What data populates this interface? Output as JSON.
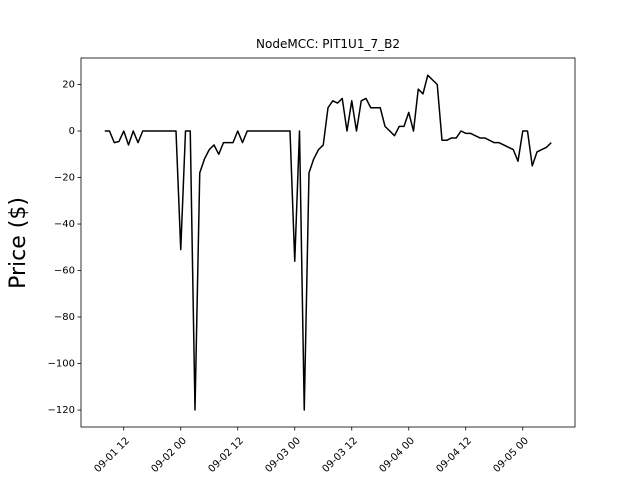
{
  "chart_data": {
    "type": "line",
    "title": "NodeMCC: PIT1U1_7_B2",
    "y_label": "Price ($)",
    "x": [
      "09-01 08",
      "09-01 09",
      "09-01 10",
      "09-01 11",
      "09-01 12",
      "09-01 13",
      "09-01 14",
      "09-01 15",
      "09-01 16",
      "09-01 17",
      "09-01 18",
      "09-01 19",
      "09-01 20",
      "09-01 21",
      "09-01 22",
      "09-01 23",
      "09-02 00",
      "09-02 01",
      "09-02 02",
      "09-02 03",
      "09-02 04",
      "09-02 05",
      "09-02 06",
      "09-02 07",
      "09-02 08",
      "09-02 09",
      "09-02 10",
      "09-02 11",
      "09-02 12",
      "09-02 13",
      "09-02 14",
      "09-02 15",
      "09-02 16",
      "09-02 17",
      "09-02 18",
      "09-02 19",
      "09-02 20",
      "09-02 21",
      "09-02 22",
      "09-02 23",
      "09-03 00",
      "09-03 01",
      "09-03 02",
      "09-03 03",
      "09-03 04",
      "09-03 05",
      "09-03 06",
      "09-03 07",
      "09-03 08",
      "09-03 09",
      "09-03 10",
      "09-03 11",
      "09-03 12",
      "09-03 13",
      "09-03 14",
      "09-03 15",
      "09-03 16",
      "09-03 17",
      "09-03 18",
      "09-03 19",
      "09-03 20",
      "09-03 21",
      "09-03 22",
      "09-03 23",
      "09-04 00",
      "09-04 01",
      "09-04 02",
      "09-04 03",
      "09-04 04",
      "09-04 05",
      "09-04 06",
      "09-04 07",
      "09-04 08",
      "09-04 09",
      "09-04 10",
      "09-04 11",
      "09-04 12",
      "09-04 13",
      "09-04 14",
      "09-04 15",
      "09-04 16",
      "09-04 17",
      "09-04 18",
      "09-04 19",
      "09-04 20",
      "09-04 21",
      "09-04 22",
      "09-04 23",
      "09-05 00",
      "09-05 01",
      "09-05 02",
      "09-05 03",
      "09-05 04",
      "09-05 05",
      "09-05 06"
    ],
    "series": [
      {
        "name": "Price",
        "color": "#000000",
        "values": [
          0,
          0,
          -5,
          -4.5,
          0,
          -6,
          0,
          -5,
          0,
          0,
          0,
          0,
          0,
          0,
          0,
          0,
          -51,
          0,
          0,
          -120,
          -18,
          -12,
          -8,
          -6,
          -10,
          -5,
          -5,
          -5,
          0,
          -5,
          0,
          0,
          0,
          0,
          0,
          0,
          0,
          0,
          0,
          0,
          -56,
          0,
          -120,
          -18,
          -12,
          -8,
          -6,
          10,
          13,
          12,
          14,
          0,
          13,
          0,
          13,
          14,
          10,
          10,
          10,
          2,
          0,
          -2,
          2,
          2,
          8,
          0,
          18,
          16,
          24,
          22,
          20,
          -4,
          -4,
          -3,
          -3,
          0,
          -1,
          -1,
          -2,
          -3,
          -3,
          -4,
          -5,
          -5,
          -6,
          -7,
          -8,
          -13,
          0,
          0,
          -15,
          -9,
          -8,
          -7,
          -5
        ]
      }
    ],
    "xlim": [
      "09-01 03",
      "09-05 11"
    ],
    "xticks": [
      "09-01 12",
      "09-02 00",
      "09-02 12",
      "09-03 00",
      "09-03 12",
      "09-04 00",
      "09-04 12",
      "09-05 00"
    ],
    "ylim": [
      -127.3,
      31.4
    ],
    "yticks": [
      {
        "value": -120,
        "label": "−120"
      },
      {
        "value": -100,
        "label": "−100"
      },
      {
        "value": -80,
        "label": "−80"
      },
      {
        "value": -60,
        "label": "−60"
      },
      {
        "value": -40,
        "label": "−40"
      },
      {
        "value": -20,
        "label": "−20"
      },
      0,
      20
    ],
    "grid": false
  }
}
